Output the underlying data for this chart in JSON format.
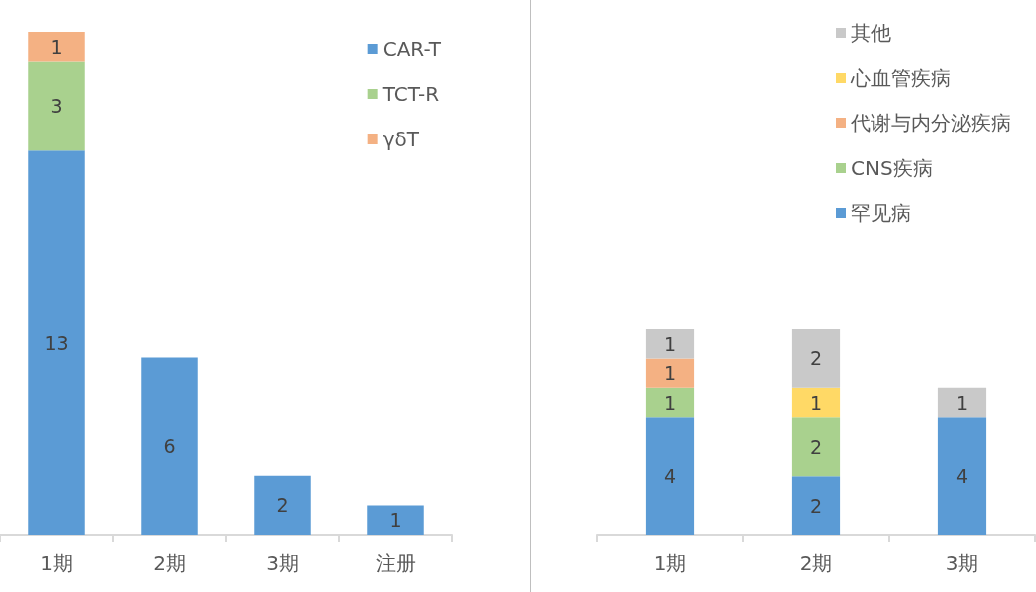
{
  "chart_data": [
    {
      "type": "bar",
      "stacked": true,
      "data_labels": true,
      "legend": "top right",
      "categories": [
        "1期",
        "2期",
        "3期",
        "注册"
      ],
      "series": [
        {
          "name": "CAR-T",
          "color": "#5b9bd5",
          "values": [
            13,
            6,
            2,
            1
          ]
        },
        {
          "name": "TCT-R",
          "color": "#a9d18e",
          "values": [
            3,
            null,
            null,
            null
          ]
        },
        {
          "name": "γδT",
          "color": "#f4b183",
          "values": [
            1,
            null,
            null,
            null
          ]
        }
      ]
    },
    {
      "type": "bar",
      "stacked": true,
      "data_labels": true,
      "legend": "top right",
      "categories": [
        "1期",
        "2期",
        "3期"
      ],
      "series": [
        {
          "name": "罕见病",
          "color": "#5b9bd5",
          "values": [
            4,
            2,
            4
          ]
        },
        {
          "name": "CNS疾病",
          "color": "#a9d18e",
          "values": [
            1,
            2,
            null
          ]
        },
        {
          "name": "代谢与内分泌疾病",
          "color": "#f4b183",
          "values": [
            1,
            null,
            null
          ]
        },
        {
          "name": "心血管疾病",
          "color": "#ffd966",
          "values": [
            null,
            1,
            null
          ]
        },
        {
          "name": "其他",
          "color": "#c9c9c9",
          "values": [
            1,
            2,
            1
          ]
        }
      ]
    }
  ]
}
